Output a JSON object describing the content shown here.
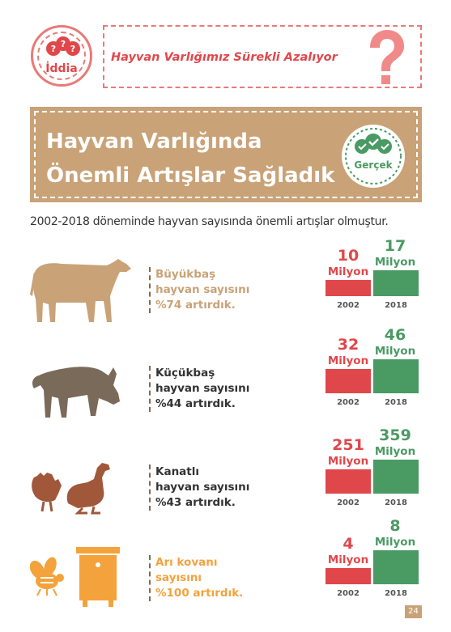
{
  "claim": {
    "label": "İddia",
    "text": "Hayvan Varlığımız Sürekli Azalıyor"
  },
  "fact": {
    "title_line1": "Hayvan Varlığında",
    "title_line2": "Önemli Artışlar Sağladık",
    "badge_label": "Gerçek"
  },
  "subtitle": "2002-2018 döneminde hayvan sayısında önemli artışlar olmuştur.",
  "colors": {
    "red": "#e0474b",
    "green": "#4a9a63",
    "tan": "#c9a277",
    "orange": "#f4a23c"
  },
  "rows": [
    {
      "icon": "cow-icon",
      "desc_line1": "Büyükbaş",
      "desc_line2": "hayvan sayısını",
      "desc_line3": "%74 artırdık.",
      "v2002": "10",
      "u2002": "Milyon",
      "y2002": "2002",
      "v2018": "17",
      "u2018": "Milyon",
      "y2018": "2018"
    },
    {
      "icon": "goat-icon",
      "desc_line1": "Küçükbaş",
      "desc_line2": "hayvan sayısını",
      "desc_line3": "%44 artırdık.",
      "v2002": "32",
      "u2002": "Milyon",
      "y2002": "2002",
      "v2018": "46",
      "u2018": "Milyon",
      "y2018": "2018"
    },
    {
      "icon": "poultry-icon",
      "desc_line1": "Kanatlı",
      "desc_line2": "hayvan sayısını",
      "desc_line3": "%43 artırdık.",
      "v2002": "251",
      "u2002": "Milyon",
      "y2002": "2002",
      "v2018": "359",
      "u2018": "Milyon",
      "y2018": "2018"
    },
    {
      "icon": "beehive-icon",
      "desc_line1": "Arı kovanı",
      "desc_line2": "sayısını",
      "desc_line3": "%100 artırdık.",
      "v2002": "4",
      "u2002": "Milyon",
      "y2002": "2002",
      "v2018": "8",
      "u2018": "Milyon",
      "y2018": "2018"
    }
  ],
  "page_number": "24"
}
